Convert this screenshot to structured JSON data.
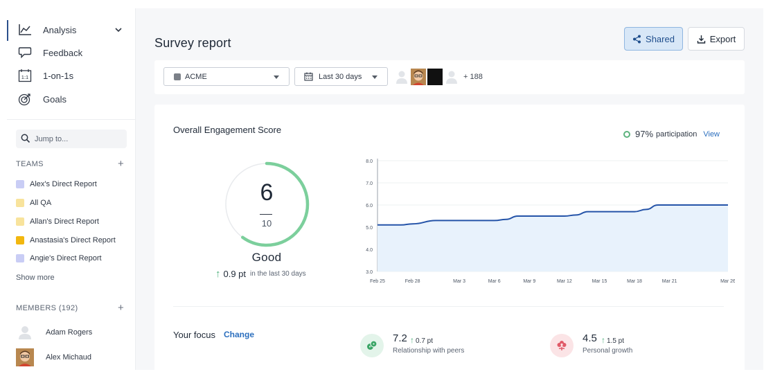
{
  "sidebar": {
    "nav": [
      {
        "label": "Analysis",
        "icon": "line-chart-icon",
        "active": true
      },
      {
        "label": "Feedback",
        "icon": "chat-bubble-icon"
      },
      {
        "label": "1-on-1s",
        "icon": "calendar-icon"
      },
      {
        "label": "Goals",
        "icon": "target-icon"
      }
    ],
    "search_placeholder": "Jump to...",
    "teams_header": "TEAMS",
    "teams": [
      {
        "label": "Alex's Direct Report",
        "color": "#c9cdf5"
      },
      {
        "label": "All QA",
        "color": "#f8e39c"
      },
      {
        "label": "Allan's Direct Report",
        "color": "#f8e39c"
      },
      {
        "label": "Anastasia's Direct Report",
        "color": "#f2b70f"
      },
      {
        "label": "Angie's Direct Report",
        "color": "#c9cdf5"
      }
    ],
    "show_more": "Show more",
    "members_header": "MEMBERS (192)",
    "members": [
      {
        "name": "Adam Rogers",
        "avatar": "person-placeholder-icon"
      },
      {
        "name": "Alex Michaud",
        "avatar": "photo-avatar"
      }
    ]
  },
  "header": {
    "title": "Survey report",
    "shared_label": "Shared",
    "export_label": "Export"
  },
  "filters": {
    "org": "ACME",
    "date_range": "Last 30 days",
    "more_people": "+ 188"
  },
  "engagement": {
    "title": "Overall Engagement Score",
    "participation_pct": "97%",
    "participation_label": "participation",
    "view_label": "View",
    "score": "6",
    "score_max": "10",
    "score_fraction": 0.6,
    "rating": "Good",
    "delta_value": "0.9 pt",
    "delta_period": "in the last 30 days"
  },
  "chart_data": {
    "type": "area",
    "title": "",
    "xlabel": "",
    "ylabel": "",
    "ylim": [
      3.0,
      8.0
    ],
    "yticks": [
      "3.0",
      "4.0",
      "5.0",
      "6.0",
      "7.0",
      "8.0"
    ],
    "xticks": [
      "Feb 25",
      "Feb 28",
      "Mar 3",
      "Mar 6",
      "Mar 9",
      "Mar 12",
      "Mar 15",
      "Mar 18",
      "Mar 21",
      "Mar 26"
    ],
    "grid": true,
    "series": [
      {
        "x": [
          "Feb 25",
          "Feb 27",
          "Feb 28",
          "Mar 1",
          "Mar 3",
          "Mar 6",
          "Mar 7",
          "Mar 8",
          "Mar 9",
          "Mar 12",
          "Mar 13",
          "Mar 14",
          "Mar 15",
          "Mar 18",
          "Mar 19",
          "Mar 20",
          "Mar 21",
          "Mar 26"
        ],
        "values": [
          5.1,
          5.1,
          5.15,
          5.3,
          5.3,
          5.3,
          5.35,
          5.5,
          5.5,
          5.5,
          5.55,
          5.7,
          5.7,
          5.7,
          5.8,
          6.0,
          6.0,
          6.0
        ],
        "color": "#2453a8",
        "fill": "#e8f2fc"
      }
    ]
  },
  "focus": {
    "label": "Your focus",
    "change_label": "Change",
    "items": [
      {
        "value": "7.2",
        "delta": "0.7 pt",
        "name": "Relationship with peers",
        "icon": "peers-icon",
        "bg": "#e3f4ea",
        "fg": "#3aa566"
      },
      {
        "value": "4.5",
        "delta": "1.5 pt",
        "name": "Personal growth",
        "icon": "flower-icon",
        "bg": "#fbe4e6",
        "fg": "#e05a68"
      }
    ]
  }
}
